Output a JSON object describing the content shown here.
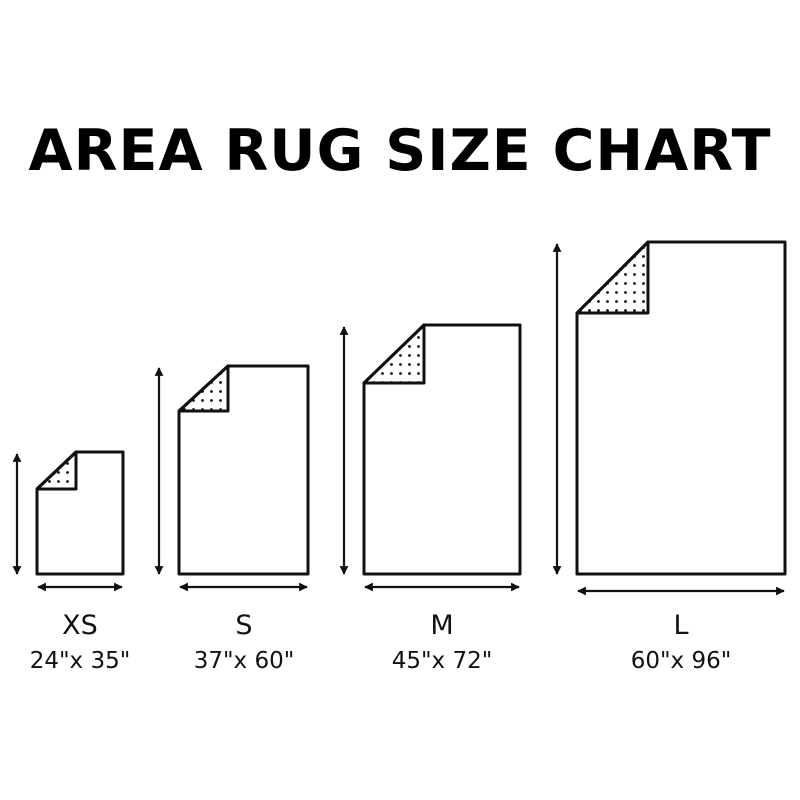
{
  "title": "AREA RUG SIZE CHART",
  "colors": {
    "ink": "#111111",
    "background": "#ffffff"
  },
  "rugs": [
    {
      "size": "XS",
      "dimensions": "24\"x 35\"",
      "width_in": 24,
      "length_in": 35
    },
    {
      "size": "S",
      "dimensions": "37\"x 60\"",
      "width_in": 37,
      "length_in": 60
    },
    {
      "size": "M",
      "dimensions": "45\"x 72\"",
      "width_in": 45,
      "length_in": 72
    },
    {
      "size": "L",
      "dimensions": "60\"x 96\"",
      "width_in": 60,
      "length_in": 96
    }
  ]
}
